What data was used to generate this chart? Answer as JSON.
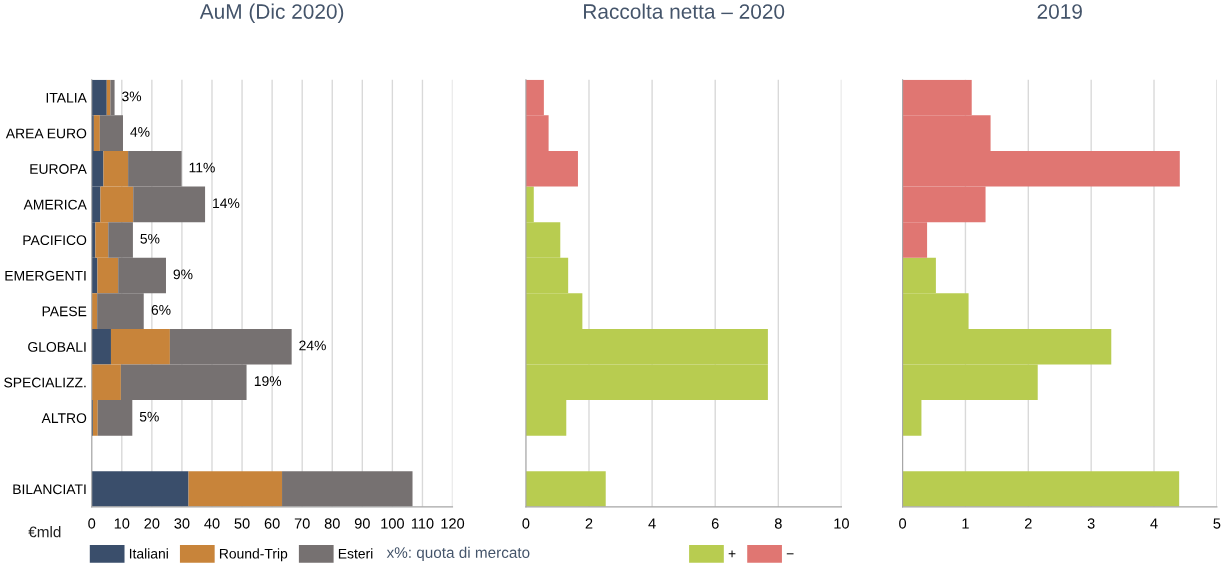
{
  "chart_data": [
    {
      "type": "bar",
      "title": "AuM (Dic 2020)",
      "orientation": "horizontal",
      "stacked": true,
      "xlabel": "€mld",
      "categories": [
        "ITALIA",
        "AREA EURO",
        "EUROPA",
        "AMERICA",
        "PACIFICO",
        "EMERGENTI",
        "PAESE",
        "GLOBALI",
        "SPECIALIZZ.",
        "ALTRO",
        null,
        "BILANCIATI"
      ],
      "series": [
        {
          "name": "Italiani",
          "color": "#3a4e6b",
          "values": [
            5.0,
            0.7,
            3.9,
            2.9,
            1.2,
            1.9,
            null,
            6.4,
            null,
            0.4,
            null,
            32.2
          ]
        },
        {
          "name": "Round-Trip",
          "color": "#c8843a",
          "values": [
            1.2,
            2.0,
            8.2,
            10.9,
            4.3,
            6.9,
            1.8,
            19.6,
            9.7,
            1.6,
            null,
            31.1
          ]
        },
        {
          "name": "Esteri",
          "color": "#767171",
          "values": [
            1.4,
            7.7,
            17.8,
            23.9,
            8.2,
            15.9,
            15.5,
            40.5,
            41.8,
            11.5,
            null,
            43.4
          ]
        }
      ],
      "xlim": [
        0,
        120
      ],
      "xticks": [
        0,
        10,
        20,
        30,
        40,
        50,
        60,
        70,
        80,
        90,
        100,
        110,
        120
      ],
      "grid": "x",
      "legend": "bottom",
      "annotations": [
        {
          "text": "3%",
          "x": 7.6,
          "y": "ITALIA"
        },
        {
          "text": "4%",
          "x": 10.4,
          "y": "AREA EURO"
        },
        {
          "text": "11%",
          "x": 29.9,
          "y": "EUROPA"
        },
        {
          "text": "14%",
          "x": 37.7,
          "y": "AMERICA"
        },
        {
          "text": "5%",
          "x": 13.7,
          "y": "PACIFICO"
        },
        {
          "text": "9%",
          "x": 24.7,
          "y": "EMERGENTI"
        },
        {
          "text": "6%",
          "x": 17.4,
          "y": "PAESE"
        },
        {
          "text": "24%",
          "x": 66.5,
          "y": "GLOBALI"
        },
        {
          "text": "19%",
          "x": 51.6,
          "y": "SPECIALIZZ."
        },
        {
          "text": "5%",
          "x": 13.5,
          "y": "ALTRO"
        },
        "x%: quota di mercato"
      ]
    },
    {
      "type": "bar",
      "title": "Raccolta netta – 2020",
      "orientation": "horizontal",
      "categories": [
        null,
        null,
        null,
        null,
        null,
        null,
        null,
        null,
        null,
        null,
        null,
        null
      ],
      "series": [
        {
          "name": "+",
          "color": "#b8cc50",
          "values": [
            null,
            null,
            null,
            0.25,
            1.09,
            1.34,
            1.79,
            7.67,
            7.67,
            1.28,
            null,
            2.53
          ]
        },
        {
          "name": "−",
          "color": "#e07672",
          "values": [
            0.57,
            0.72,
            1.65,
            null,
            null,
            null,
            null,
            null,
            null,
            null,
            null,
            null
          ]
        }
      ],
      "xlim": [
        0,
        10
      ],
      "xticks": [
        0,
        2,
        4,
        6,
        8,
        10
      ],
      "grid": "x",
      "legend": "bottom right"
    },
    {
      "type": "bar",
      "title": "2019",
      "orientation": "horizontal",
      "categories": [
        null,
        null,
        null,
        null,
        null,
        null,
        null,
        null,
        null,
        null,
        null,
        null
      ],
      "series": [
        {
          "color": "#b8cc50",
          "values": [
            null,
            null,
            null,
            null,
            null,
            0.53,
            1.05,
            3.32,
            2.15,
            0.3,
            null,
            4.4
          ]
        },
        {
          "color": "#e07672",
          "values": [
            1.1,
            1.4,
            4.41,
            1.32,
            0.39,
            null,
            null,
            null,
            null,
            null,
            null,
            null
          ]
        }
      ],
      "xlim": [
        0,
        5
      ],
      "xticks": [
        0,
        1,
        2,
        3,
        4,
        5
      ],
      "grid": "x"
    }
  ]
}
